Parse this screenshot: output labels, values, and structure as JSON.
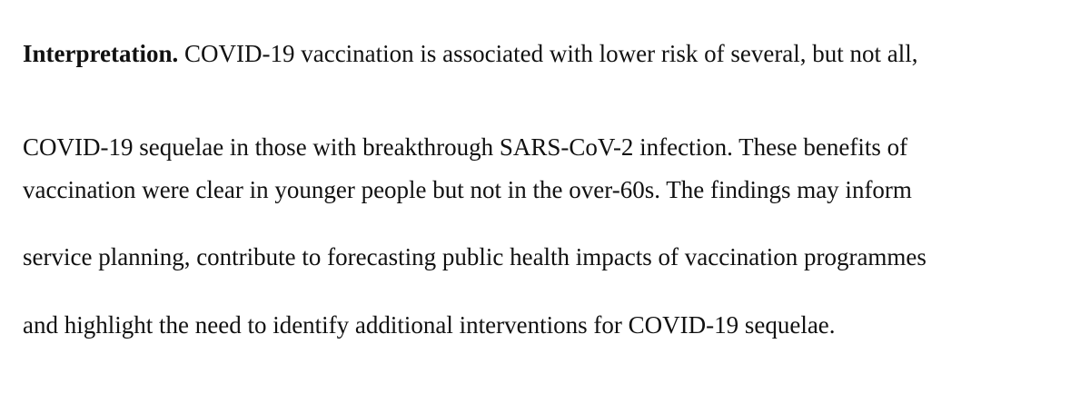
{
  "paragraph": {
    "heading": "Interpretation.",
    "lines": [
      " COVID-19 vaccination is associated with lower risk of several, but not all,",
      "COVID-19 sequelae in those with breakthrough SARS-CoV-2 infection. These benefits of",
      "vaccination were clear in younger people but not in the over-60s. The findings may inform",
      "service planning, contribute to forecasting public health impacts of vaccination programmes",
      "and highlight the need to identify additional interventions for COVID-19 sequelae."
    ]
  }
}
